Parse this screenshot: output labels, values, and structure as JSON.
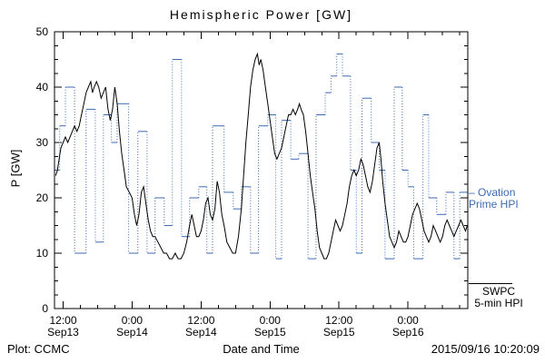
{
  "footer": {
    "plot_credit": "Plot: CCMC",
    "timestamp": "2015/09/16 10:20:09"
  },
  "legend": {
    "ovation": {
      "line1": "– Ovation",
      "line2": "Prime HPI",
      "color": "#3d6bb3"
    },
    "swpc": {
      "line1": "SWPC",
      "line2": "5-min HPI",
      "color": "#000000"
    }
  },
  "chart_data": {
    "type": "line",
    "title": "Hemispheric Power [GW]",
    "xlabel": "Date and Time",
    "ylabel": "P [GW]",
    "ylim": [
      0,
      50
    ],
    "y_ticks": [
      0,
      10,
      20,
      30,
      40,
      50
    ],
    "y_minor_every": 2.5,
    "x_unit": "hours since Sep13 00:00",
    "x_range_hours": [
      10.5,
      82.4
    ],
    "x_minor_every_hours": 3,
    "grid": false,
    "legend_position": "right-outside",
    "x_ticks": [
      {
        "hours": 12,
        "time": "12:00",
        "date": "Sep13"
      },
      {
        "hours": 24,
        "time": "0:00",
        "date": "Sep14"
      },
      {
        "hours": 36,
        "time": "12:00",
        "date": "Sep14"
      },
      {
        "hours": 48,
        "time": "0:00",
        "date": "Sep15"
      },
      {
        "hours": 60,
        "time": "12:00",
        "date": "Sep15"
      },
      {
        "hours": 72,
        "time": "0:00",
        "date": "Sep16"
      }
    ],
    "series": [
      {
        "name": "Ovation Prime HPI",
        "color": "#3d6bb3",
        "line_style": "dotted-step",
        "draw": "step",
        "points": [
          [
            10.6,
            25
          ],
          [
            11.4,
            33
          ],
          [
            12.4,
            40
          ],
          [
            14.0,
            10
          ],
          [
            16.0,
            36
          ],
          [
            17.6,
            12
          ],
          [
            19.0,
            35
          ],
          [
            20.4,
            30
          ],
          [
            21.4,
            37
          ],
          [
            23.4,
            10
          ],
          [
            25.0,
            32
          ],
          [
            26.6,
            10
          ],
          [
            28.0,
            20
          ],
          [
            29.6,
            15
          ],
          [
            31.0,
            45
          ],
          [
            32.6,
            13
          ],
          [
            34.0,
            20
          ],
          [
            35.6,
            22
          ],
          [
            37.0,
            10
          ],
          [
            38.0,
            33
          ],
          [
            40.0,
            21
          ],
          [
            41.6,
            18
          ],
          [
            43.0,
            22
          ],
          [
            44.6,
            10
          ],
          [
            46.0,
            33
          ],
          [
            47.6,
            35
          ],
          [
            49.0,
            9
          ],
          [
            50.0,
            34
          ],
          [
            51.6,
            27
          ],
          [
            53.0,
            28
          ],
          [
            54.6,
            9
          ],
          [
            56.0,
            35
          ],
          [
            57.6,
            39
          ],
          [
            58.6,
            42
          ],
          [
            59.6,
            46
          ],
          [
            60.6,
            42
          ],
          [
            62.0,
            25
          ],
          [
            63.0,
            10
          ],
          [
            64.0,
            38
          ],
          [
            65.6,
            30
          ],
          [
            67.0,
            25
          ],
          [
            68.0,
            9
          ],
          [
            69.6,
            40
          ],
          [
            71.0,
            25
          ],
          [
            72.0,
            22
          ],
          [
            73.0,
            9
          ],
          [
            74.6,
            35
          ],
          [
            75.6,
            20
          ],
          [
            77.0,
            17
          ],
          [
            78.6,
            21
          ],
          [
            80.0,
            9
          ],
          [
            81.0,
            21
          ]
        ]
      },
      {
        "name": "SWPC 5-min HPI",
        "color": "#000000",
        "line_style": "solid",
        "draw": "line",
        "points": [
          [
            10.7,
            24
          ],
          [
            11.0,
            25
          ],
          [
            11.3,
            27
          ],
          [
            11.6,
            29
          ],
          [
            12.0,
            30
          ],
          [
            12.4,
            31
          ],
          [
            12.8,
            30
          ],
          [
            13.2,
            31
          ],
          [
            13.6,
            32
          ],
          [
            14.0,
            33
          ],
          [
            14.4,
            32
          ],
          [
            14.8,
            33
          ],
          [
            15.2,
            35
          ],
          [
            15.6,
            37
          ],
          [
            16.0,
            39
          ],
          [
            16.4,
            40
          ],
          [
            16.8,
            41
          ],
          [
            17.1,
            39
          ],
          [
            17.4,
            40
          ],
          [
            17.8,
            41
          ],
          [
            18.2,
            40
          ],
          [
            18.6,
            38
          ],
          [
            19.0,
            39
          ],
          [
            19.4,
            40
          ],
          [
            19.8,
            36
          ],
          [
            20.2,
            34
          ],
          [
            20.6,
            36
          ],
          [
            21.0,
            40
          ],
          [
            21.4,
            37
          ],
          [
            21.8,
            32
          ],
          [
            22.2,
            28
          ],
          [
            22.6,
            25
          ],
          [
            23.0,
            22
          ],
          [
            23.5,
            21
          ],
          [
            24.0,
            20
          ],
          [
            24.4,
            17
          ],
          [
            24.8,
            15
          ],
          [
            25.2,
            17
          ],
          [
            25.6,
            21
          ],
          [
            26.0,
            22
          ],
          [
            26.4,
            19
          ],
          [
            26.8,
            16
          ],
          [
            27.2,
            14
          ],
          [
            27.6,
            13
          ],
          [
            28.0,
            13
          ],
          [
            28.5,
            12
          ],
          [
            29.0,
            11
          ],
          [
            29.5,
            10
          ],
          [
            30.0,
            10
          ],
          [
            30.5,
            9
          ],
          [
            31.0,
            9
          ],
          [
            31.5,
            10
          ],
          [
            32.0,
            9
          ],
          [
            32.5,
            9
          ],
          [
            33.0,
            10
          ],
          [
            33.5,
            12
          ],
          [
            34.0,
            15
          ],
          [
            34.4,
            17
          ],
          [
            34.8,
            15
          ],
          [
            35.2,
            13
          ],
          [
            35.6,
            13
          ],
          [
            36.0,
            14
          ],
          [
            36.4,
            16
          ],
          [
            36.8,
            19
          ],
          [
            37.2,
            20
          ],
          [
            37.6,
            17
          ],
          [
            38.0,
            16
          ],
          [
            38.4,
            18
          ],
          [
            38.8,
            23
          ],
          [
            39.2,
            21
          ],
          [
            39.6,
            17
          ],
          [
            40.0,
            15
          ],
          [
            40.5,
            12
          ],
          [
            41.0,
            11
          ],
          [
            41.5,
            10
          ],
          [
            42.0,
            10
          ],
          [
            42.5,
            13
          ],
          [
            43.0,
            18
          ],
          [
            43.4,
            24
          ],
          [
            43.8,
            30
          ],
          [
            44.2,
            35
          ],
          [
            44.6,
            40
          ],
          [
            45.0,
            43
          ],
          [
            45.4,
            45
          ],
          [
            45.8,
            46
          ],
          [
            46.1,
            44
          ],
          [
            46.4,
            45
          ],
          [
            46.8,
            43
          ],
          [
            47.2,
            40
          ],
          [
            47.6,
            37
          ],
          [
            48.0,
            34
          ],
          [
            48.4,
            31
          ],
          [
            48.8,
            28
          ],
          [
            49.2,
            27
          ],
          [
            49.6,
            28
          ],
          [
            50.0,
            29
          ],
          [
            50.4,
            31
          ],
          [
            50.8,
            33
          ],
          [
            51.2,
            35
          ],
          [
            51.6,
            35
          ],
          [
            52.0,
            36
          ],
          [
            52.4,
            35
          ],
          [
            52.8,
            36
          ],
          [
            53.1,
            37
          ],
          [
            53.4,
            36
          ],
          [
            53.8,
            35
          ],
          [
            54.2,
            32
          ],
          [
            54.6,
            28
          ],
          [
            55.0,
            24
          ],
          [
            55.4,
            21
          ],
          [
            55.8,
            18
          ],
          [
            56.2,
            14
          ],
          [
            56.6,
            11
          ],
          [
            57.0,
            10
          ],
          [
            57.4,
            9
          ],
          [
            57.8,
            9
          ],
          [
            58.2,
            10
          ],
          [
            58.6,
            12
          ],
          [
            59.0,
            14
          ],
          [
            59.4,
            16
          ],
          [
            59.8,
            15
          ],
          [
            60.2,
            14
          ],
          [
            60.6,
            15
          ],
          [
            61.0,
            17
          ],
          [
            61.4,
            19
          ],
          [
            61.8,
            22
          ],
          [
            62.2,
            24
          ],
          [
            62.6,
            25
          ],
          [
            63.0,
            24
          ],
          [
            63.4,
            25
          ],
          [
            63.8,
            27
          ],
          [
            64.2,
            26
          ],
          [
            64.6,
            24
          ],
          [
            65.0,
            22
          ],
          [
            65.4,
            21
          ],
          [
            65.8,
            23
          ],
          [
            66.2,
            26
          ],
          [
            66.6,
            29
          ],
          [
            67.0,
            30
          ],
          [
            67.3,
            27
          ],
          [
            67.6,
            23
          ],
          [
            68.0,
            19
          ],
          [
            68.4,
            16
          ],
          [
            68.8,
            13
          ],
          [
            69.2,
            12
          ],
          [
            69.6,
            11
          ],
          [
            70.0,
            12
          ],
          [
            70.4,
            14
          ],
          [
            70.8,
            13
          ],
          [
            71.2,
            12
          ],
          [
            71.6,
            12
          ],
          [
            72.0,
            13
          ],
          [
            72.4,
            15
          ],
          [
            72.8,
            17
          ],
          [
            73.2,
            18
          ],
          [
            73.6,
            19
          ],
          [
            74.0,
            18
          ],
          [
            74.4,
            16
          ],
          [
            74.8,
            14
          ],
          [
            75.2,
            13
          ],
          [
            75.6,
            12
          ],
          [
            76.0,
            13
          ],
          [
            76.4,
            15
          ],
          [
            76.8,
            14
          ],
          [
            77.2,
            13
          ],
          [
            77.6,
            12
          ],
          [
            78.0,
            13
          ],
          [
            78.4,
            15
          ],
          [
            78.8,
            16
          ],
          [
            79.2,
            15
          ],
          [
            79.6,
            14
          ],
          [
            80.0,
            13
          ],
          [
            80.4,
            14
          ],
          [
            80.8,
            15
          ],
          [
            81.2,
            16
          ],
          [
            81.6,
            15
          ],
          [
            82.0,
            14
          ],
          [
            82.3,
            15
          ]
        ]
      }
    ]
  }
}
